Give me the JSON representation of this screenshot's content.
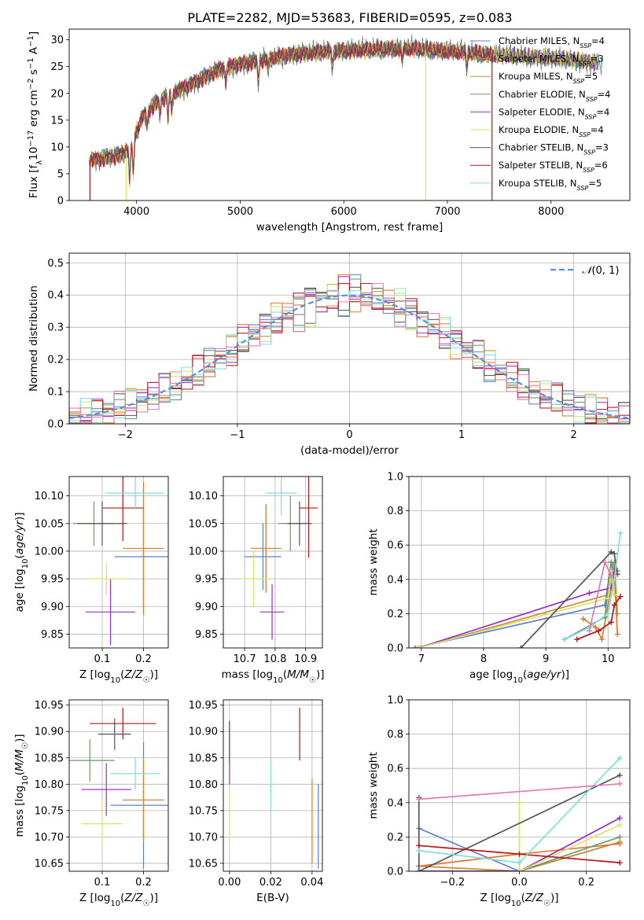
{
  "figure_title": "PLATE=2282, MJD=53683, FIBERID=0595, z=0.083",
  "models": [
    {
      "name": "Chabrier MILES",
      "nssp": "4",
      "color": "#5b7fd4"
    },
    {
      "name": "Salpeter MILES",
      "nssp": "3",
      "color": "#e8742a"
    },
    {
      "name": "Kroupa MILES",
      "nssp": "5",
      "color": "#cc8b3a"
    },
    {
      "name": "Chabrier ELODIE",
      "nssp": "4",
      "color": "#6a9a6a"
    },
    {
      "name": "Salpeter ELODIE",
      "nssp": "4",
      "color": "#9b30c0"
    },
    {
      "name": "Kroupa ELODIE",
      "nssp": "4",
      "color": "#d8e36a"
    },
    {
      "name": "Chabrier STELIB",
      "nssp": "3",
      "color": "#555555"
    },
    {
      "name": "Salpeter STELIB",
      "nssp": "6",
      "color": "#b01818"
    },
    {
      "name": "Kroupa STELIB",
      "nssp": "5",
      "color": "#7fdde0"
    }
  ],
  "chart_data": [
    {
      "id": "spectrum",
      "type": "line",
      "xlabel": "wavelength [Angstrom, rest frame]",
      "ylabel_parts": [
        "Flux [f",
        "λ",
        "10",
        "−17",
        " erg cm",
        "−2",
        " s",
        "−1",
        " A",
        "−1",
        "]"
      ],
      "xlim": [
        3350,
        8760
      ],
      "ylim": [
        0,
        32
      ],
      "xticks": [
        4000,
        5000,
        6000,
        7000,
        8000
      ],
      "yticks": [
        0,
        5,
        10,
        15,
        20,
        25,
        30
      ],
      "continuum": [
        [
          3550,
          7.5
        ],
        [
          3700,
          8.0
        ],
        [
          3850,
          8.5
        ],
        [
          3950,
          10
        ],
        [
          4050,
          15.5
        ],
        [
          4200,
          18.5
        ],
        [
          4400,
          20.5
        ],
        [
          4600,
          22.5
        ],
        [
          4800,
          24.5
        ],
        [
          5000,
          25.5
        ],
        [
          5200,
          26.2
        ],
        [
          5500,
          27.3
        ],
        [
          5800,
          27.8
        ],
        [
          6000,
          28.0
        ],
        [
          6300,
          28.2
        ],
        [
          6600,
          28.4
        ],
        [
          6900,
          28.0
        ],
        [
          7200,
          27.6
        ],
        [
          7400,
          27.2
        ],
        [
          7800,
          26.8
        ],
        [
          8200,
          26.2
        ],
        [
          8500,
          25.5
        ]
      ],
      "line_dips": [
        [
          3934,
          6
        ],
        [
          3969,
          6
        ],
        [
          4102,
          3
        ],
        [
          4226,
          2.5
        ],
        [
          4304,
          4
        ],
        [
          4340,
          3
        ],
        [
          4861,
          3
        ],
        [
          5175,
          4
        ],
        [
          5270,
          2
        ],
        [
          5890,
          3
        ],
        [
          6563,
          2.5
        ],
        [
          7186,
          3
        ]
      ],
      "spike_lines": [
        {
          "x": 3550,
          "model": 7
        },
        {
          "x": 3900,
          "model": 5
        },
        {
          "x": 6790,
          "model": 5
        },
        {
          "x": 7430,
          "model": 7
        }
      ]
    },
    {
      "id": "residual_histogram",
      "type": "histogram",
      "xlabel": "(data-model)/error",
      "ylabel": "Normed distribution",
      "xlim": [
        -2.5,
        2.5
      ],
      "ylim": [
        0,
        0.53
      ],
      "xticks": [
        -2,
        -1,
        0,
        1,
        2
      ],
      "yticks": [
        0.0,
        0.1,
        0.2,
        0.3,
        0.4,
        0.5
      ],
      "bin_width": 0.1,
      "reference_curve": "𝒩(0, 1)",
      "peak_values": [
        0.46,
        0.45,
        0.44,
        0.43,
        0.49,
        0.45,
        0.42,
        0.47,
        0.51
      ]
    },
    {
      "id": "age_vs_Z",
      "type": "errorbar",
      "xlabel": "Z [log10(Z/Z☉)]",
      "ylabel": "age  [log10(age/yr)]",
      "xlim": [
        0.02,
        0.26
      ],
      "ylim": [
        9.825,
        10.135
      ],
      "xticks": [
        0.1,
        0.2
      ],
      "yticks": [
        9.85,
        9.9,
        9.95,
        10.0,
        10.05,
        10.1
      ],
      "points": [
        {
          "model": 0,
          "x": 0.2,
          "xerr": 0.07,
          "y": 9.99,
          "yerr": 0.09
        },
        {
          "model": 1,
          "x": 0.2,
          "xerr": 0.05,
          "y": 10.005,
          "yerr": 0.12
        },
        {
          "model": 2,
          "x": 0.2,
          "xerr": 0.05,
          "y": 10.005,
          "yerr": 0.11
        },
        {
          "model": 3,
          "x": 0.08,
          "xerr": 0.05,
          "y": 10.05,
          "yerr": 0.04
        },
        {
          "model": 4,
          "x": 0.12,
          "xerr": 0.06,
          "y": 9.89,
          "yerr": 0.06
        },
        {
          "model": 5,
          "x": 0.11,
          "xerr": 0.05,
          "y": 9.95,
          "yerr": 0.03
        },
        {
          "model": 6,
          "x": 0.1,
          "xerr": 0.06,
          "y": 10.05,
          "yerr": 0.04
        },
        {
          "model": 7,
          "x": 0.15,
          "xerr": 0.05,
          "y": 10.078,
          "yerr": 0.06
        },
        {
          "model": 8,
          "x": 0.18,
          "xerr": 0.07,
          "y": 10.105,
          "yerr": 0.03
        }
      ]
    },
    {
      "id": "age_vs_mass",
      "type": "errorbar",
      "xlabel": "mass [log10(M/M☉)]",
      "ylabel": "",
      "xlim": [
        10.63,
        10.955
      ],
      "ylim": [
        9.825,
        10.135
      ],
      "xticks": [
        10.7,
        10.8,
        10.9
      ],
      "yticks": [
        9.85,
        9.9,
        9.95,
        10.0,
        10.05,
        10.1
      ],
      "points": [
        {
          "model": 0,
          "x": 10.76,
          "xerr": 0.06,
          "y": 9.99,
          "yerr": 0.06
        },
        {
          "model": 1,
          "x": 10.77,
          "xerr": 0.05,
          "y": 10.005,
          "yerr": 0.08
        },
        {
          "model": 2,
          "x": 10.77,
          "xerr": 0.05,
          "y": 10.005,
          "yerr": 0.08
        },
        {
          "model": 3,
          "x": 10.85,
          "xerr": 0.04,
          "y": 10.05,
          "yerr": 0.05
        },
        {
          "model": 4,
          "x": 10.79,
          "xerr": 0.04,
          "y": 9.89,
          "yerr": 0.05
        },
        {
          "model": 5,
          "x": 10.73,
          "xerr": 0.05,
          "y": 9.95,
          "yerr": 0.05
        },
        {
          "model": 6,
          "x": 10.88,
          "xerr": 0.04,
          "y": 10.05,
          "yerr": 0.04
        },
        {
          "model": 7,
          "x": 10.91,
          "xerr": 0.03,
          "y": 10.078,
          "yerr": 0.09
        },
        {
          "model": 8,
          "x": 10.82,
          "xerr": 0.05,
          "y": 10.105,
          "yerr": 0.04
        }
      ]
    },
    {
      "id": "mass_weight_vs_age",
      "type": "line",
      "xlabel": "age  [log10(age/yr)]",
      "ylabel": "mass weight",
      "xlim": [
        6.8,
        10.35
      ],
      "ylim": [
        0,
        1
      ],
      "xticks": [
        7,
        8,
        9,
        10
      ],
      "yticks": [
        0.0,
        0.2,
        0.4,
        0.6,
        0.8,
        1.0
      ],
      "series": [
        {
          "model": 0,
          "points": [
            [
              6.9,
              0.0
            ],
            [
              9.95,
              0.25
            ],
            [
              10.05,
              0.5
            ],
            [
              10.1,
              0.4
            ]
          ]
        },
        {
          "model": 1,
          "points": [
            [
              9.6,
              0.17
            ],
            [
              9.8,
              0.12
            ],
            [
              9.9,
              0.05
            ],
            [
              10.1,
              0.45
            ],
            [
              10.15,
              0.08
            ]
          ]
        },
        {
          "model": 2,
          "points": [
            [
              6.95,
              0.0
            ],
            [
              10.0,
              0.31
            ],
            [
              10.1,
              0.5
            ],
            [
              10.15,
              0.2
            ]
          ]
        },
        {
          "model": 3,
          "points": [
            [
              9.3,
              0.05
            ],
            [
              9.95,
              0.18
            ],
            [
              10.05,
              0.5
            ],
            [
              10.15,
              0.45
            ]
          ]
        },
        {
          "model": 4,
          "points": [
            [
              6.95,
              0.0
            ],
            [
              9.7,
              0.32
            ],
            [
              10.05,
              0.35
            ],
            [
              10.1,
              0.45
            ]
          ]
        },
        {
          "model": 5,
          "points": [
            [
              6.95,
              0.0
            ],
            [
              10.0,
              0.29
            ],
            [
              10.05,
              0.45
            ],
            [
              10.1,
              0.31
            ]
          ]
        },
        {
          "model": 6,
          "points": [
            [
              8.6,
              0.0
            ],
            [
              10.05,
              0.56
            ],
            [
              10.1,
              0.55
            ],
            [
              10.15,
              0.43
            ]
          ]
        },
        {
          "model": 7,
          "points": [
            [
              9.5,
              0.05
            ],
            [
              9.85,
              0.1
            ],
            [
              10.05,
              0.15
            ],
            [
              10.1,
              0.25
            ],
            [
              10.2,
              0.3
            ]
          ]
        },
        {
          "model": 8,
          "points": [
            [
              9.3,
              0.05
            ],
            [
              9.7,
              0.12
            ],
            [
              10.0,
              0.2
            ],
            [
              10.1,
              0.4
            ],
            [
              10.2,
              0.67
            ]
          ]
        }
      ],
      "extra_series": [
        {
          "color": "#e37ab4",
          "points": [
            [
              9.7,
              0.1
            ],
            [
              9.95,
              0.5
            ],
            [
              10.05,
              0.42
            ]
          ]
        }
      ]
    },
    {
      "id": "mass_vs_Z",
      "type": "errorbar",
      "xlabel": "Z [log10(Z/Z☉)]",
      "ylabel": "mass [log10(M/M☉)]",
      "xlim": [
        0.02,
        0.26
      ],
      "ylim": [
        10.635,
        10.96
      ],
      "xticks": [
        0.1,
        0.2
      ],
      "yticks": [
        10.65,
        10.7,
        10.75,
        10.8,
        10.85,
        10.9,
        10.95
      ],
      "points": [
        {
          "model": 0,
          "x": 0.2,
          "xerr": 0.08,
          "y": 10.76,
          "yerr": 0.12
        },
        {
          "model": 1,
          "x": 0.2,
          "xerr": 0.05,
          "y": 10.77,
          "yerr": 0.07
        },
        {
          "model": 2,
          "x": 0.2,
          "xerr": 0.05,
          "y": 10.77,
          "yerr": 0.08
        },
        {
          "model": 3,
          "x": 0.07,
          "xerr": 0.06,
          "y": 10.845,
          "yerr": 0.04
        },
        {
          "model": 4,
          "x": 0.11,
          "xerr": 0.06,
          "y": 10.79,
          "yerr": 0.05
        },
        {
          "model": 5,
          "x": 0.1,
          "xerr": 0.05,
          "y": 10.725,
          "yerr": 0.04
        },
        {
          "model": 6,
          "x": 0.13,
          "xerr": 0.04,
          "y": 10.895,
          "yerr": 0.03
        },
        {
          "model": 7,
          "x": 0.15,
          "xerr": 0.08,
          "y": 10.915,
          "yerr": 0.03
        },
        {
          "model": 8,
          "x": 0.18,
          "xerr": 0.06,
          "y": 10.82,
          "yerr": 0.03
        }
      ]
    },
    {
      "id": "mass_vs_ebv",
      "type": "errorbar",
      "xlabel": "E(B-V)",
      "ylabel": "",
      "xlim": [
        -0.003,
        0.045
      ],
      "ylim": [
        10.635,
        10.96
      ],
      "xticks": [
        0.0,
        0.02,
        0.04
      ],
      "yticks": [
        10.65,
        10.7,
        10.75,
        10.8,
        10.85,
        10.9,
        10.95
      ],
      "points": [
        {
          "model": 0,
          "x": 0.043,
          "xerr": 0.0,
          "y": 10.72,
          "yerr": 0.08
        },
        {
          "model": 1,
          "x": 0.04,
          "xerr": 0.0,
          "y": 10.73,
          "yerr": 0.08
        },
        {
          "model": 4,
          "x": 0.0,
          "xerr": 0.0,
          "y": 10.86,
          "yerr": 0.06
        },
        {
          "model": 5,
          "x": 0.0,
          "xerr": 0.0,
          "y": 10.74,
          "yerr": 0.05
        },
        {
          "model": 6,
          "x": 0.0,
          "xerr": 0.0,
          "y": 10.88,
          "yerr": 0.04
        },
        {
          "model": 7,
          "x": 0.034,
          "xerr": 0.0,
          "y": 10.895,
          "yerr": 0.05
        },
        {
          "model": 8,
          "x": 0.02,
          "xerr": 0.0,
          "y": 10.8,
          "yerr": 0.05
        }
      ]
    },
    {
      "id": "mass_weight_vs_Z",
      "type": "line",
      "xlabel": "Z [log10(Z/Z☉)]",
      "ylabel": "mass weight",
      "xlim": [
        -0.33,
        0.33
      ],
      "ylim": [
        0,
        1
      ],
      "xticks": [
        -0.2,
        0.0,
        0.2
      ],
      "yticks": [
        0.0,
        0.2,
        0.4,
        0.6,
        0.8,
        1.0
      ],
      "series": [
        {
          "model": 0,
          "points": [
            [
              -0.3,
              0.25
            ],
            [
              0.0,
              0.0
            ],
            [
              0.3,
              0.17
            ]
          ]
        },
        {
          "model": 1,
          "points": [
            [
              -0.3,
              0.03
            ],
            [
              0.0,
              0.1
            ],
            [
              0.3,
              0.16
            ]
          ]
        },
        {
          "model": 2,
          "points": [
            [
              -0.3,
              0.03
            ],
            [
              0.0,
              0.0
            ],
            [
              0.3,
              0.17
            ]
          ]
        },
        {
          "model": 3,
          "points": [
            [
              -0.3,
              0.0
            ],
            [
              0.0,
              0.0
            ],
            [
              0.3,
              0.2
            ]
          ]
        },
        {
          "model": 4,
          "points": [
            [
              -0.3,
              0.0
            ],
            [
              0.0,
              0.0
            ],
            [
              0.3,
              0.31
            ]
          ]
        },
        {
          "model": 5,
          "points": [
            [
              0.0,
              0.4
            ],
            [
              0.0,
              0.0
            ],
            [
              0.3,
              0.27
            ]
          ]
        },
        {
          "model": 6,
          "points": [
            [
              -0.3,
              0.43
            ],
            [
              -0.3,
              0.0
            ],
            [
              0.3,
              0.56
            ]
          ]
        },
        {
          "model": 7,
          "points": [
            [
              -0.3,
              0.15
            ],
            [
              0.0,
              0.1
            ],
            [
              0.3,
              0.05
            ]
          ]
        },
        {
          "model": 8,
          "points": [
            [
              -0.3,
              0.12
            ],
            [
              0.0,
              0.05
            ],
            [
              0.3,
              0.66
            ]
          ]
        }
      ],
      "extra_series": [
        {
          "color": "#e37ab4",
          "points": [
            [
              -0.3,
              0.42
            ],
            [
              0.3,
              0.51
            ]
          ]
        }
      ]
    }
  ]
}
